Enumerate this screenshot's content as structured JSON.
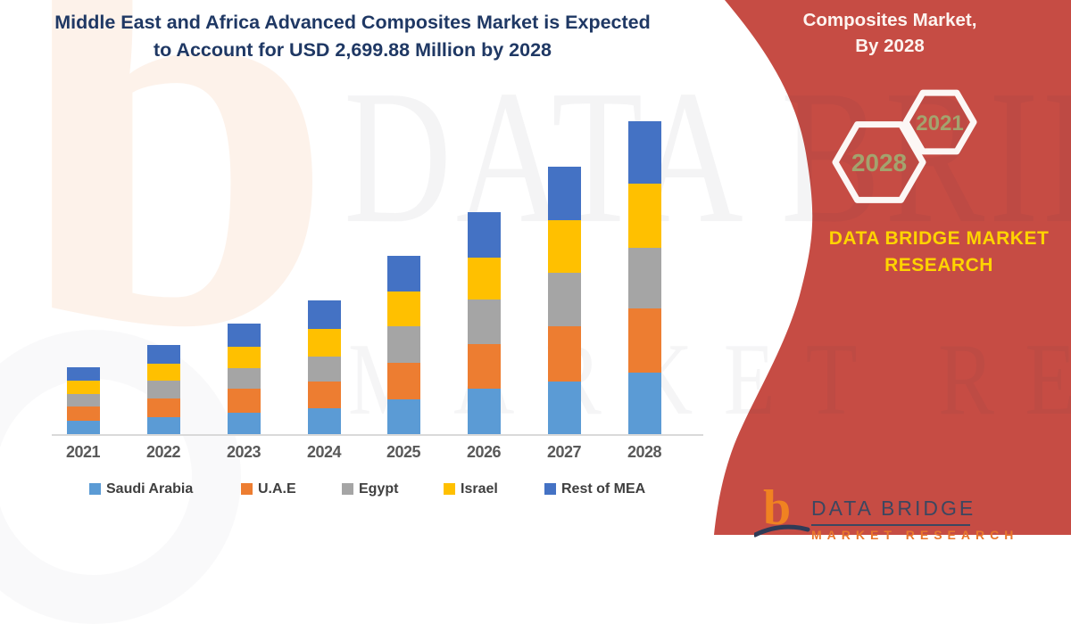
{
  "title": {
    "line1": "Middle East and Africa Advanced Composites Market is Expected",
    "line2": "to Account for USD 2,699.88 Million by 2028"
  },
  "right_panel": {
    "heading_line1": "Composites Market,",
    "heading_line2": "By 2028",
    "hexagon_back_label": "2028",
    "hexagon_front_label": "2021",
    "brand_line1": "DATA BRIDGE MARKET",
    "brand_line2": "RESEARCH"
  },
  "watermark": {
    "logo_glyph": "b",
    "line1": "DATA BRIDGE",
    "line2": "MARKET RESEARCH"
  },
  "footer_logo": {
    "glyph": "b",
    "title": "DATA BRIDGE",
    "subtitle": "MARKET RESEARCH"
  },
  "colors": {
    "panel_red": "#C64C44",
    "title_navy": "#1F3864",
    "axis_label_gray": "#595959",
    "legend_label_gray": "#3F3F3F",
    "hexagon_label_olive": "#A3A36E",
    "brand_yellow": "#FFD400",
    "logo_navy": "#3C4760",
    "logo_orange": "#F08221"
  },
  "chart_data": {
    "type": "bar",
    "stacked": true,
    "title": "Middle East and Africa Advanced Composites Market is Expected to Account for USD 2,699.88 Million by 2028",
    "xlabel": "",
    "ylabel": "",
    "unit": "USD Million",
    "grid": false,
    "y_axis_shown": false,
    "legend_position": "bottom",
    "categories": [
      "2021",
      "2022",
      "2023",
      "2024",
      "2025",
      "2026",
      "2027",
      "2028"
    ],
    "series": [
      {
        "name": "Saudi Arabia",
        "color": "#5B9BD5",
        "values": [
          115.4,
          146.1,
          184.6,
          223.1,
          300.0,
          392.3,
          453.8,
          530.8
        ]
      },
      {
        "name": "U.A.E",
        "color": "#ED7D31",
        "values": [
          123.1,
          161.5,
          207.7,
          230.8,
          315.4,
          384.6,
          476.9,
          553.8
        ]
      },
      {
        "name": "Egypt",
        "color": "#A5A5A5",
        "values": [
          107.7,
          153.8,
          176.9,
          215.4,
          315.4,
          384.6,
          461.5,
          523.1
        ]
      },
      {
        "name": "Israel",
        "color": "#FFC000",
        "values": [
          115.4,
          146.1,
          184.6,
          238.4,
          300.0,
          361.5,
          453.8,
          553.8
        ]
      },
      {
        "name": "Rest of MEA",
        "color": "#4472C4",
        "values": [
          115.4,
          161.5,
          200.0,
          246.1,
          307.7,
          392.3,
          461.5,
          538.38
        ]
      }
    ],
    "totals": [
      577.0,
      769.0,
      953.8,
      1153.8,
      1538.5,
      1915.3,
      2307.5,
      2699.88
    ],
    "highlight_total_2028": "2,699.88"
  }
}
